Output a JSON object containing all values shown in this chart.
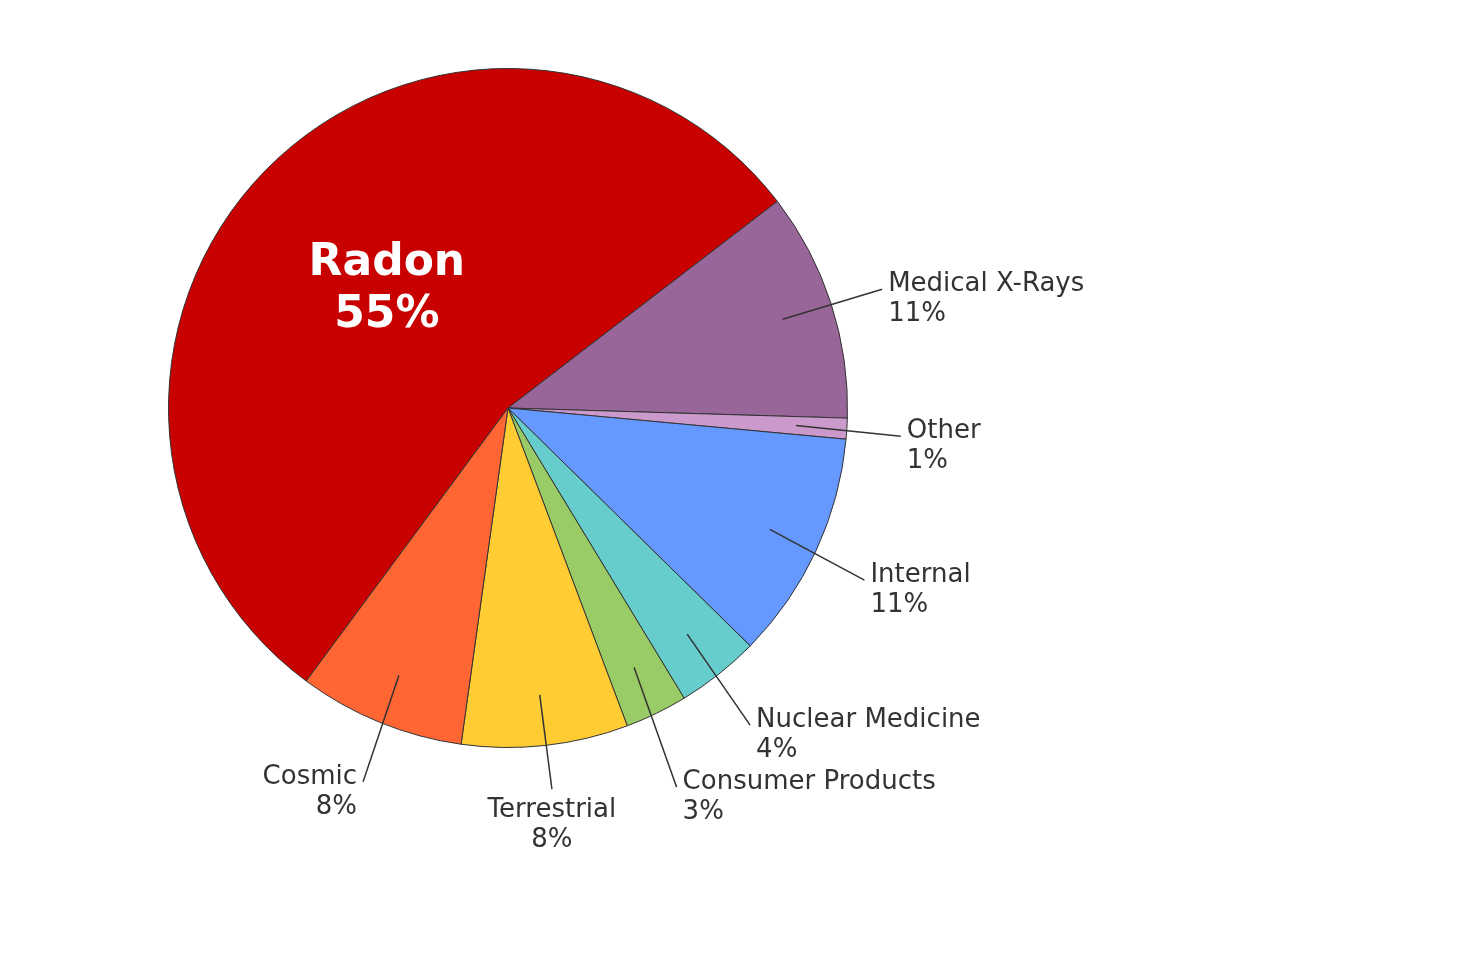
{
  "chart_data": {
    "type": "pie",
    "categories": [
      "Radon",
      "Medical X-Rays",
      "Other",
      "Internal",
      "Nuclear Medicine",
      "Consumer Products",
      "Terrestrial",
      "Cosmic"
    ],
    "values": [
      55,
      11,
      1,
      11,
      4,
      3,
      8,
      8
    ],
    "value_labels": [
      "55%",
      "11%",
      "1%",
      "11%",
      "4%",
      "3%",
      "8%",
      "8%"
    ],
    "colors": [
      "#c80000",
      "#996699",
      "#cc99cc",
      "#6699ff",
      "#66cccc",
      "#99cc66",
      "#ffcc33",
      "#ff6633"
    ],
    "legend": false
  }
}
